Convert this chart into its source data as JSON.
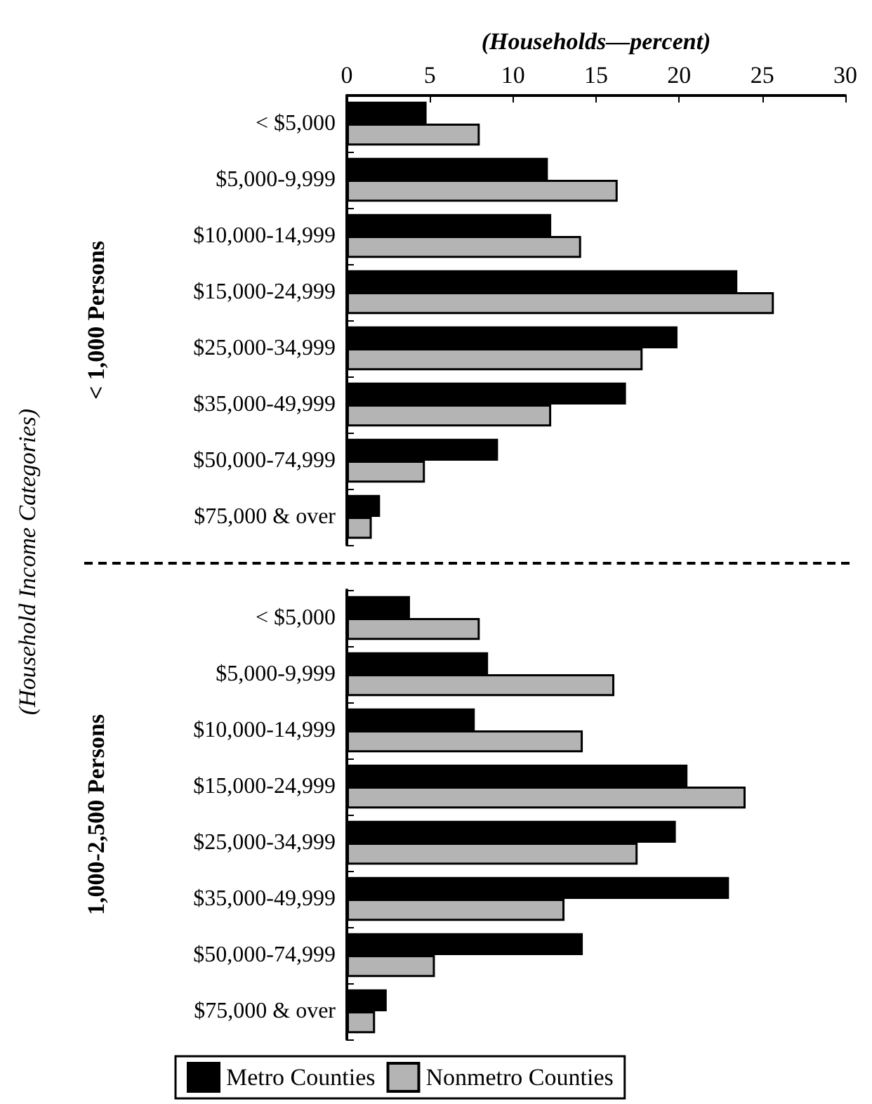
{
  "chart_data": [
    {
      "type": "bar",
      "orientation": "horizontal",
      "xlabel": "(Households—percent)",
      "ylabel": "< 1,000 Persons",
      "annotations": [
        "(Household Income Categories)"
      ],
      "categories": [
        "< $5,000",
        "$5,000-9,999",
        "$10,000-14,999",
        "$15,000-24,999",
        "$25,000-34,999",
        "$35,000-49,999",
        "$50,000-74,999",
        "$75,000 & over"
      ],
      "series": [
        {
          "color": "#000000",
          "values": [
            4.8,
            12.1,
            12.3,
            23.5,
            19.9,
            16.8,
            9.1,
            2.0
          ]
        },
        {
          "color": "#b4b4b4",
          "values": [
            8.0,
            16.3,
            14.1,
            25.7,
            17.8,
            12.3,
            4.7,
            1.5
          ]
        }
      ],
      "xlim": [
        0,
        30
      ],
      "xticks": [
        0,
        5,
        10,
        15,
        20,
        25,
        30
      ],
      "grid": false,
      "legend": false
    },
    {
      "type": "bar",
      "orientation": "horizontal",
      "ylabel": "1,000-2,500 Persons",
      "categories": [
        "< $5,000",
        "$5,000-9,999",
        "$10,000-14,999",
        "$15,000-24,999",
        "$25,000-34,999",
        "$35,000-49,999",
        "$50,000-74,999",
        "$75,000 & over"
      ],
      "series": [
        {
          "name": "Metro Counties",
          "color": "#000000",
          "values": [
            3.8,
            8.5,
            7.7,
            20.5,
            19.8,
            23.0,
            14.2,
            2.4
          ]
        },
        {
          "name": "Nonmetro Counties",
          "color": "#b4b4b4",
          "values": [
            8.0,
            16.1,
            14.2,
            24.0,
            17.5,
            13.1,
            5.3,
            1.7
          ]
        }
      ],
      "xlim": [
        0,
        30
      ],
      "xticks": [
        0,
        5,
        10,
        15,
        20,
        25,
        30
      ],
      "grid": false,
      "legend": "bottom",
      "tick_labels": "y"
    }
  ]
}
